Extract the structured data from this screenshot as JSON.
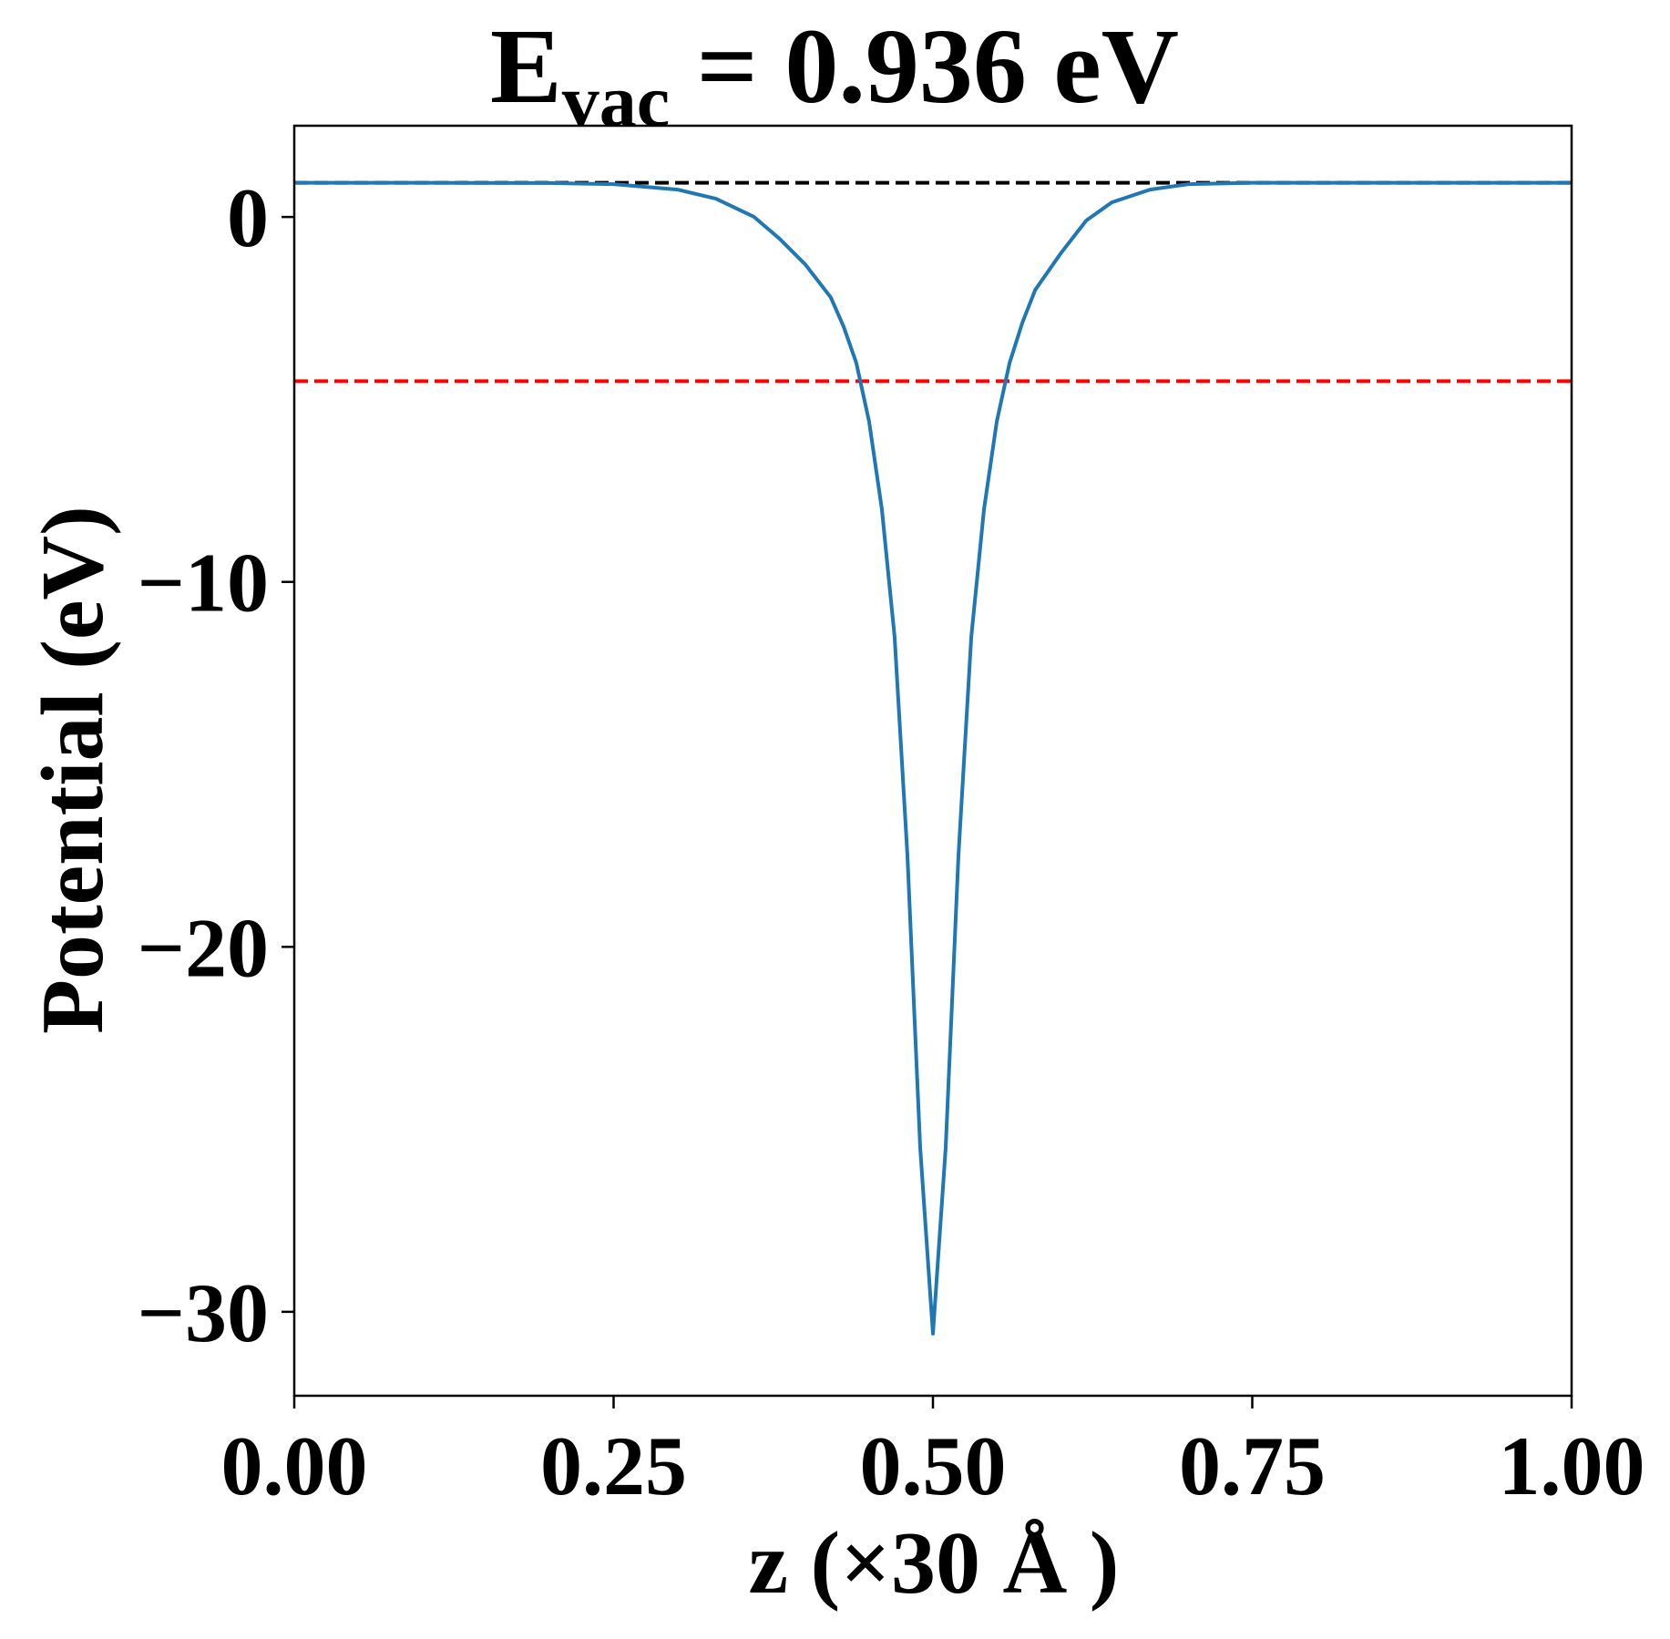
{
  "chart_data": {
    "type": "line",
    "title": {
      "main": "E",
      "subscript": "vac",
      "rest": " = 0.936 eV"
    },
    "xlabel": "z (×30 Å )",
    "ylabel": "Potential (eV)",
    "xlim": [
      0.0,
      1.0
    ],
    "ylim": [
      -32.3,
      2.5
    ],
    "x_ticks": [
      0.0,
      0.25,
      0.5,
      0.75,
      1.0
    ],
    "x_tick_labels": [
      "0.00",
      "0.25",
      "0.50",
      "0.75",
      "1.00"
    ],
    "y_ticks": [
      0,
      -10,
      -20,
      -30
    ],
    "y_tick_labels": [
      "0",
      "−10",
      "−20",
      "−30"
    ],
    "grid": false,
    "series": [
      {
        "color": "#1f77b4",
        "style": "solid",
        "x": [
          0.0,
          0.1,
          0.2,
          0.25,
          0.3,
          0.33,
          0.36,
          0.38,
          0.4,
          0.42,
          0.43,
          0.44,
          0.45,
          0.46,
          0.47,
          0.48,
          0.49,
          0.5,
          0.51,
          0.52,
          0.53,
          0.54,
          0.55,
          0.56,
          0.57,
          0.58,
          0.6,
          0.62,
          0.64,
          0.67,
          0.7,
          0.75,
          0.8,
          0.9,
          1.0
        ],
        "y": [
          0.936,
          0.936,
          0.93,
          0.9,
          0.75,
          0.5,
          0.0,
          -0.6,
          -1.3,
          -2.2,
          -3.0,
          -4.0,
          -5.6,
          -8.0,
          -11.5,
          -17.5,
          -25.5,
          -30.6,
          -25.5,
          -17.5,
          -11.5,
          -8.0,
          -5.6,
          -4.0,
          -2.9,
          -2.0,
          -1.0,
          -0.1,
          0.4,
          0.75,
          0.9,
          0.936,
          0.936,
          0.936,
          0.936
        ]
      },
      {
        "color": "#000000",
        "style": "dashed",
        "x": [
          0.0,
          1.0
        ],
        "y": [
          0.936,
          0.936
        ]
      },
      {
        "color": "#ff0000",
        "style": "dashed",
        "x": [
          0.0,
          1.0
        ],
        "y": [
          -4.5,
          -4.5
        ]
      }
    ]
  }
}
